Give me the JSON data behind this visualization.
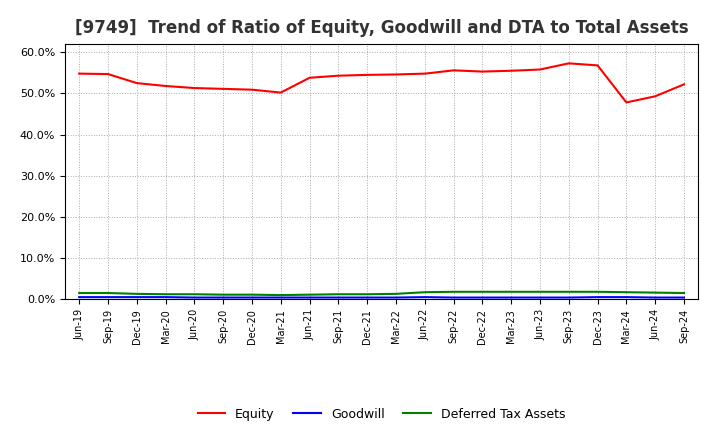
{
  "title": "[9749]  Trend of Ratio of Equity, Goodwill and DTA to Total Assets",
  "x_labels": [
    "Jun-19",
    "Sep-19",
    "Dec-19",
    "Mar-20",
    "Jun-20",
    "Sep-20",
    "Dec-20",
    "Mar-21",
    "Jun-21",
    "Sep-21",
    "Dec-21",
    "Mar-22",
    "Jun-22",
    "Sep-22",
    "Dec-22",
    "Mar-23",
    "Jun-23",
    "Sep-23",
    "Dec-23",
    "Mar-24",
    "Jun-24",
    "Sep-24"
  ],
  "equity": [
    54.8,
    54.7,
    52.5,
    51.8,
    51.3,
    51.1,
    50.9,
    50.2,
    53.8,
    54.3,
    54.5,
    54.6,
    54.8,
    55.6,
    55.3,
    55.5,
    55.8,
    57.3,
    56.8,
    47.8,
    49.3,
    52.2
  ],
  "goodwill": [
    0.5,
    0.5,
    0.5,
    0.5,
    0.4,
    0.4,
    0.4,
    0.4,
    0.4,
    0.4,
    0.4,
    0.4,
    0.5,
    0.4,
    0.4,
    0.4,
    0.4,
    0.4,
    0.5,
    0.5,
    0.4,
    0.4
  ],
  "dta": [
    1.5,
    1.5,
    1.3,
    1.2,
    1.2,
    1.1,
    1.1,
    1.0,
    1.1,
    1.2,
    1.2,
    1.3,
    1.7,
    1.8,
    1.8,
    1.8,
    1.8,
    1.8,
    1.8,
    1.7,
    1.6,
    1.5
  ],
  "equity_color": "#FF0000",
  "goodwill_color": "#0000FF",
  "dta_color": "#008000",
  "ylim": [
    0,
    62
  ],
  "yticks": [
    0,
    10,
    20,
    30,
    40,
    50,
    60
  ],
  "ytick_labels": [
    "0.0%",
    "10.0%",
    "20.0%",
    "30.0%",
    "40.0%",
    "50.0%",
    "60.0%"
  ],
  "bg_color": "#FFFFFF",
  "plot_bg_color": "#FFFFFF",
  "grid_color": "#AAAAAA",
  "title_fontsize": 12,
  "legend_labels": [
    "Equity",
    "Goodwill",
    "Deferred Tax Assets"
  ]
}
